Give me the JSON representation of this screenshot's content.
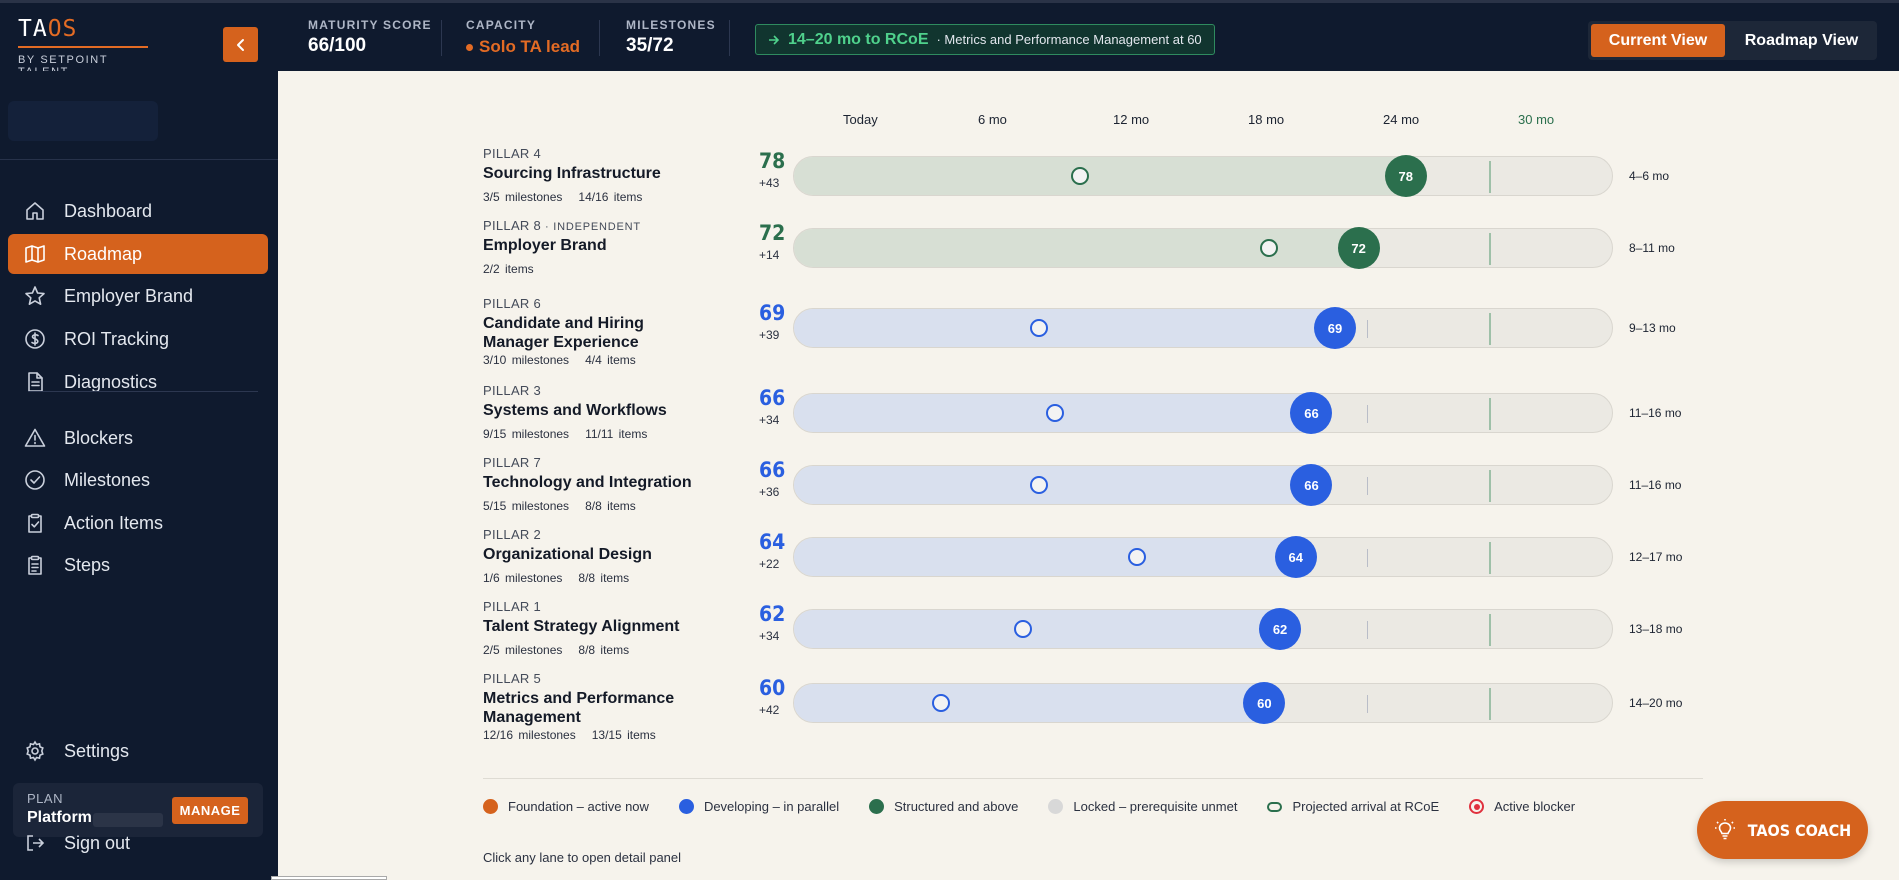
{
  "brand": {
    "name_prefix": "TA",
    "name_accent": "OS",
    "subtitle": "BY SETPOINT TALENT"
  },
  "header": {
    "maturity": {
      "label": "MATURITY SCORE",
      "value": "66/100"
    },
    "capacity": {
      "label": "CAPACITY",
      "value": "Solo TA lead"
    },
    "milestones": {
      "label": "MILESTONES",
      "value": "35/72"
    },
    "eta": {
      "main": "14–20 mo to RCoE",
      "sub": "· Metrics and Performance Management at 60"
    },
    "views": {
      "current": "Current View",
      "roadmap": "Roadmap View",
      "active": "current"
    }
  },
  "sidebar": {
    "items": [
      {
        "label": "Dashboard",
        "icon": "home-icon"
      },
      {
        "label": "Roadmap",
        "icon": "map-icon",
        "active": true
      },
      {
        "label": "Employer Brand",
        "icon": "star-icon"
      },
      {
        "label": "ROI Tracking",
        "icon": "dollar-icon"
      },
      {
        "label": "Diagnostics",
        "icon": "document-icon"
      },
      {
        "label": "Blockers",
        "icon": "warning-icon"
      },
      {
        "label": "Milestones",
        "icon": "check-circle-icon"
      },
      {
        "label": "Action Items",
        "icon": "clipboard-check-icon"
      },
      {
        "label": "Steps",
        "icon": "clipboard-list-icon"
      }
    ],
    "settings": "Settings",
    "plan": {
      "label": "PLAN",
      "name": "Platform",
      "manage": "MANAGE"
    },
    "signout": "Sign out"
  },
  "timeline": {
    "ticks": [
      "Today",
      "6 mo",
      "12 mo",
      "18 mo",
      "24 mo",
      "30 mo"
    ],
    "target_tick": "30 mo"
  },
  "colors": {
    "foundation": "#d5621d",
    "developing": "#2a5fe0",
    "structured": "#2b6f4d",
    "locked": "#d8d8d8",
    "blocker": "#e0313e"
  },
  "lanes": [
    {
      "pillar": "PILLAR 4",
      "tag": "",
      "name": "Sourcing Infrastructure",
      "milestones": "3/5 milestones",
      "items": "14/16 items",
      "score": 78,
      "delta": "+43",
      "current": 35,
      "status": "structured",
      "eta": "4–6 mo",
      "two_line": false
    },
    {
      "pillar": "PILLAR 8",
      "tag": "· INDEPENDENT",
      "name": "Employer Brand",
      "milestones": "",
      "items": "2/2 items",
      "score": 72,
      "delta": "+14",
      "current": 58,
      "status": "structured",
      "eta": "8–11 mo",
      "two_line": false
    },
    {
      "pillar": "PILLAR 6",
      "tag": "",
      "name": "Candidate and Hiring Manager Experience",
      "milestones": "3/10 milestones",
      "items": "4/4 items",
      "score": 69,
      "delta": "+39",
      "current": 30,
      "status": "developing",
      "eta": "9–13 mo",
      "two_line": true
    },
    {
      "pillar": "PILLAR 3",
      "tag": "",
      "name": "Systems and Workflows",
      "milestones": "9/15 milestones",
      "items": "11/11 items",
      "score": 66,
      "delta": "+34",
      "current": 32,
      "status": "developing",
      "eta": "11–16 mo",
      "two_line": false
    },
    {
      "pillar": "PILLAR 7",
      "tag": "",
      "name": "Technology and Integration",
      "milestones": "5/15 milestones",
      "items": "8/8 items",
      "score": 66,
      "delta": "+36",
      "current": 30,
      "status": "developing",
      "eta": "11–16 mo",
      "two_line": false
    },
    {
      "pillar": "PILLAR 2",
      "tag": "",
      "name": "Organizational Design",
      "milestones": "1/6 milestones",
      "items": "8/8 items",
      "score": 64,
      "delta": "+22",
      "current": 42,
      "status": "developing",
      "eta": "12–17 mo",
      "two_line": false
    },
    {
      "pillar": "PILLAR 1",
      "tag": "",
      "name": "Talent Strategy Alignment",
      "milestones": "2/5 milestones",
      "items": "8/8 items",
      "score": 62,
      "delta": "+34",
      "current": 28,
      "status": "developing",
      "eta": "13–18 mo",
      "two_line": false
    },
    {
      "pillar": "PILLAR 5",
      "tag": "",
      "name": "Metrics and Performance Management",
      "milestones": "12/16 milestones",
      "items": "13/15 items",
      "score": 60,
      "delta": "+42",
      "current": 18,
      "status": "developing",
      "eta": "14–20 mo",
      "two_line": true
    }
  ],
  "legend": [
    {
      "label": "Foundation – active now",
      "kind": "foundation"
    },
    {
      "label": "Developing – in parallel",
      "kind": "developing"
    },
    {
      "label": "Structured and above",
      "kind": "structured"
    },
    {
      "label": "Locked – prerequisite unmet",
      "kind": "locked"
    },
    {
      "label": "Projected arrival at RCoE",
      "kind": "projected"
    },
    {
      "label": "Active blocker",
      "kind": "blocker"
    }
  ],
  "hint": "Click any lane to open detail panel",
  "coach": {
    "label": "TAOS COACH"
  }
}
